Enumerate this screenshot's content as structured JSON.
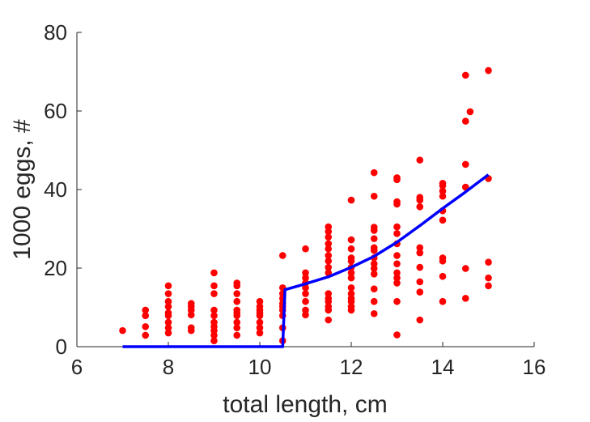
{
  "chart_data": {
    "type": "scatter",
    "title": "",
    "xlabel": "total length, cm",
    "ylabel": "1000 eggs, #",
    "xlim": [
      6,
      16
    ],
    "ylim": [
      0,
      80
    ],
    "xticks": [
      6,
      8,
      10,
      12,
      14,
      16
    ],
    "yticks": [
      0,
      20,
      40,
      60,
      80
    ],
    "xtick_labels": [
      "6",
      "8",
      "10",
      "12",
      "14",
      "16"
    ],
    "ytick_labels": [
      "0",
      "20",
      "40",
      "60",
      "80"
    ],
    "grid": false,
    "series": [
      {
        "type": "scatter",
        "color": "#ff0000",
        "points": [
          [
            7.0,
            4.1
          ],
          [
            7.5,
            2.9
          ],
          [
            7.5,
            5.1
          ],
          [
            7.5,
            7.9
          ],
          [
            7.5,
            9.3
          ],
          [
            8.0,
            3.5
          ],
          [
            8.0,
            4.8
          ],
          [
            8.0,
            6.2
          ],
          [
            8.0,
            7.9
          ],
          [
            8.0,
            8.6
          ],
          [
            8.0,
            10.2
          ],
          [
            8.0,
            11.5
          ],
          [
            8.0,
            13.5
          ],
          [
            8.0,
            15.5
          ],
          [
            8.5,
            4.1
          ],
          [
            8.5,
            4.8
          ],
          [
            8.5,
            8.1
          ],
          [
            8.5,
            9.3
          ],
          [
            8.5,
            10.2
          ],
          [
            8.5,
            11.0
          ],
          [
            9.0,
            1.5
          ],
          [
            9.0,
            2.9
          ],
          [
            9.0,
            4.1
          ],
          [
            9.0,
            5.1
          ],
          [
            9.0,
            6.2
          ],
          [
            9.0,
            7.9
          ],
          [
            9.0,
            9.3
          ],
          [
            9.0,
            13.5
          ],
          [
            9.0,
            15.5
          ],
          [
            9.0,
            18.8
          ],
          [
            9.5,
            2.9
          ],
          [
            9.5,
            4.8
          ],
          [
            9.5,
            6.2
          ],
          [
            9.5,
            7.9
          ],
          [
            9.5,
            8.6
          ],
          [
            9.5,
            9.3
          ],
          [
            9.5,
            11.5
          ],
          [
            9.5,
            13.5
          ],
          [
            9.5,
            15.5
          ],
          [
            9.5,
            16.2
          ],
          [
            10.0,
            3.5
          ],
          [
            10.0,
            4.8
          ],
          [
            10.0,
            6.2
          ],
          [
            10.0,
            7.9
          ],
          [
            10.0,
            8.6
          ],
          [
            10.0,
            9.3
          ],
          [
            10.0,
            10.2
          ],
          [
            10.0,
            11.5
          ],
          [
            10.5,
            1.5
          ],
          [
            10.5,
            4.8
          ],
          [
            10.5,
            7.9
          ],
          [
            10.5,
            9.3
          ],
          [
            10.5,
            10.2
          ],
          [
            10.5,
            11.0
          ],
          [
            10.5,
            12.3
          ],
          [
            10.5,
            13.5
          ],
          [
            10.5,
            15.0
          ],
          [
            10.5,
            23.2
          ],
          [
            11.0,
            8.1
          ],
          [
            11.0,
            9.3
          ],
          [
            11.0,
            11.5
          ],
          [
            11.0,
            13.5
          ],
          [
            11.0,
            15.0
          ],
          [
            11.0,
            16.2
          ],
          [
            11.0,
            17.5
          ],
          [
            11.0,
            18.8
          ],
          [
            11.0,
            24.9
          ],
          [
            11.5,
            6.8
          ],
          [
            11.5,
            9.3
          ],
          [
            11.5,
            10.2
          ],
          [
            11.5,
            11.5
          ],
          [
            11.5,
            12.3
          ],
          [
            11.5,
            13.5
          ],
          [
            11.5,
            18.8
          ],
          [
            11.5,
            20.2
          ],
          [
            11.5,
            21.8
          ],
          [
            11.5,
            23.2
          ],
          [
            11.5,
            24.9
          ],
          [
            11.5,
            26.2
          ],
          [
            11.5,
            27.9
          ],
          [
            11.5,
            29.3
          ],
          [
            11.5,
            30.5
          ],
          [
            12.0,
            9.3
          ],
          [
            12.0,
            10.2
          ],
          [
            12.0,
            11.5
          ],
          [
            12.0,
            12.3
          ],
          [
            12.0,
            13.5
          ],
          [
            12.0,
            15.0
          ],
          [
            12.0,
            17.5
          ],
          [
            12.0,
            18.8
          ],
          [
            12.0,
            20.2
          ],
          [
            12.0,
            21.8
          ],
          [
            12.0,
            22.6
          ],
          [
            12.0,
            24.9
          ],
          [
            12.0,
            27.2
          ],
          [
            12.0,
            37.3
          ],
          [
            12.5,
            8.4
          ],
          [
            12.5,
            11.5
          ],
          [
            12.5,
            14.7
          ],
          [
            12.5,
            18.5
          ],
          [
            12.5,
            19.9
          ],
          [
            12.5,
            21.1
          ],
          [
            12.5,
            22.6
          ],
          [
            12.5,
            24.5
          ],
          [
            12.5,
            25.2
          ],
          [
            12.5,
            27.5
          ],
          [
            12.5,
            29.6
          ],
          [
            12.5,
            30.4
          ],
          [
            12.5,
            38.3
          ],
          [
            12.5,
            44.3
          ],
          [
            13.0,
            3.0
          ],
          [
            13.0,
            11.5
          ],
          [
            13.0,
            16.2
          ],
          [
            13.0,
            17.5
          ],
          [
            13.0,
            18.8
          ],
          [
            13.0,
            21.1
          ],
          [
            13.0,
            23.2
          ],
          [
            13.0,
            26.2
          ],
          [
            13.0,
            28.8
          ],
          [
            13.0,
            30.5
          ],
          [
            13.0,
            36.3
          ],
          [
            13.0,
            36.9
          ],
          [
            13.0,
            42.5
          ],
          [
            13.0,
            43.0
          ],
          [
            13.5,
            6.8
          ],
          [
            13.5,
            13.9
          ],
          [
            13.5,
            16.5
          ],
          [
            13.5,
            20.2
          ],
          [
            13.5,
            23.9
          ],
          [
            13.5,
            25.2
          ],
          [
            13.5,
            35.6
          ],
          [
            13.5,
            37.3
          ],
          [
            13.5,
            38.0
          ],
          [
            13.5,
            47.5
          ],
          [
            14.0,
            11.5
          ],
          [
            14.0,
            17.9
          ],
          [
            14.0,
            21.8
          ],
          [
            14.0,
            22.6
          ],
          [
            14.0,
            32.2
          ],
          [
            14.0,
            34.6
          ],
          [
            14.0,
            38.3
          ],
          [
            14.0,
            39.6
          ],
          [
            14.0,
            41.0
          ],
          [
            14.0,
            41.6
          ],
          [
            14.5,
            12.3
          ],
          [
            14.5,
            19.9
          ],
          [
            14.5,
            40.6
          ],
          [
            14.5,
            46.4
          ],
          [
            14.5,
            57.4
          ],
          [
            14.5,
            69.1
          ],
          [
            14.6,
            59.8
          ],
          [
            15.0,
            15.5
          ],
          [
            15.0,
            17.5
          ],
          [
            15.0,
            21.5
          ],
          [
            15.0,
            42.8
          ],
          [
            15.0,
            70.3
          ]
        ]
      },
      {
        "type": "line",
        "color": "#0000ff",
        "points": [
          [
            7.0,
            0
          ],
          [
            10.5,
            0
          ],
          [
            10.55,
            14.5
          ],
          [
            11.0,
            16.0
          ],
          [
            11.5,
            17.8
          ],
          [
            12.0,
            20.2
          ],
          [
            12.5,
            23.0
          ],
          [
            13.0,
            26.6
          ],
          [
            13.5,
            30.8
          ],
          [
            14.0,
            35.2
          ],
          [
            14.5,
            39.4
          ],
          [
            15.0,
            43.8
          ]
        ]
      }
    ]
  }
}
